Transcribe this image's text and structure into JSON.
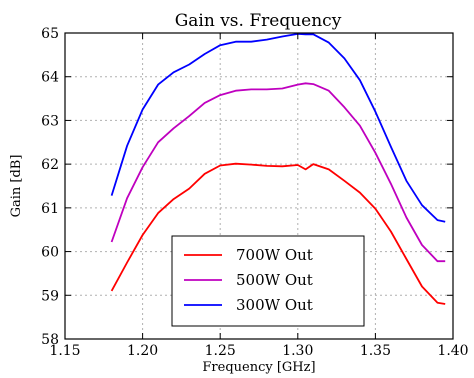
{
  "chart_data": {
    "type": "line",
    "title": "Gain vs. Frequency",
    "xlabel": "Frequency [GHz]",
    "ylabel": "Gain [dB]",
    "xlim": [
      1.15,
      1.4
    ],
    "ylim": [
      58,
      65
    ],
    "xticks": [
      1.15,
      1.2,
      1.25,
      1.3,
      1.35,
      1.4
    ],
    "xtick_labels": [
      "1.15",
      "1.20",
      "1.25",
      "1.30",
      "1.35",
      "1.40"
    ],
    "yticks": [
      58,
      59,
      60,
      61,
      62,
      63,
      64,
      65
    ],
    "ytick_labels": [
      "58",
      "59",
      "60",
      "61",
      "62",
      "63",
      "64",
      "65"
    ],
    "grid": true,
    "legend_position": "lower-center",
    "x": [
      1.18,
      1.19,
      1.2,
      1.21,
      1.22,
      1.23,
      1.24,
      1.25,
      1.26,
      1.27,
      1.28,
      1.29,
      1.3,
      1.305,
      1.31,
      1.32,
      1.33,
      1.34,
      1.35,
      1.36,
      1.37,
      1.38,
      1.39,
      1.395
    ],
    "series": [
      {
        "name": "700W Out",
        "color": "#ff0000",
        "values": [
          59.1,
          59.75,
          60.38,
          60.88,
          61.2,
          61.44,
          61.78,
          61.97,
          62.01,
          61.99,
          61.96,
          61.95,
          61.98,
          61.88,
          62.0,
          61.88,
          61.62,
          61.35,
          60.98,
          60.46,
          59.83,
          59.2,
          58.83,
          58.8
        ]
      },
      {
        "name": "500W Out",
        "color": "#bf00bf",
        "values": [
          60.22,
          61.22,
          61.93,
          62.5,
          62.82,
          63.1,
          63.4,
          63.58,
          63.68,
          63.71,
          63.71,
          63.73,
          63.82,
          63.85,
          63.83,
          63.68,
          63.3,
          62.88,
          62.26,
          61.55,
          60.78,
          60.15,
          59.78,
          59.78
        ]
      },
      {
        "name": "300W Out",
        "color": "#0000ff",
        "values": [
          61.28,
          62.42,
          63.25,
          63.82,
          64.1,
          64.28,
          64.52,
          64.72,
          64.8,
          64.8,
          64.85,
          64.92,
          64.98,
          64.97,
          64.97,
          64.78,
          64.42,
          63.92,
          63.2,
          62.4,
          61.62,
          61.06,
          60.72,
          60.68
        ]
      }
    ]
  }
}
